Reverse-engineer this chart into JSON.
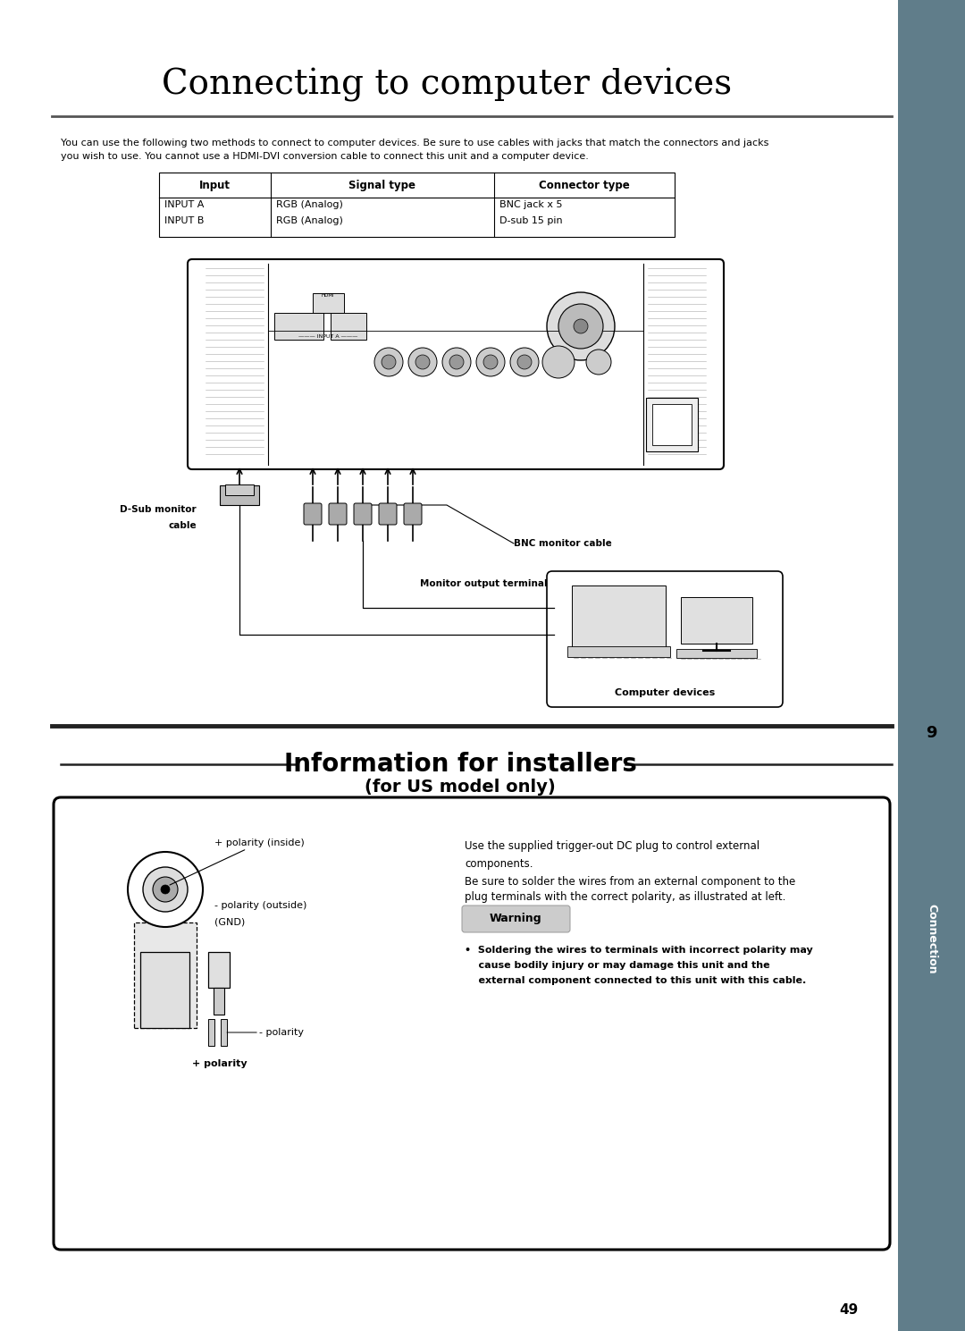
{
  "title": "Connecting to computer devices",
  "bg_color": "#ffffff",
  "sidebar_color": "#607d8a",
  "page_number": "49",
  "chapter_number": "9",
  "chapter_label": "Connection",
  "body_text_line1": "You can use the following two methods to connect to computer devices. Be sure to use cables with jacks that match the connectors and jacks",
  "body_text_line2": "you wish to use. You cannot use a HDMI-DVI conversion cable to connect this unit and a computer device.",
  "table_headers": [
    "Input",
    "Signal type",
    "Connector type"
  ],
  "table_rows": [
    [
      "INPUT A",
      "RGB (Analog)",
      "BNC jack x 5"
    ],
    [
      "INPUT B",
      "RGB (Analog)",
      "D-sub 15 pin"
    ]
  ],
  "section2_title": "Information for installers",
  "section2_subtitle": "(for US model only)",
  "warning_label": "Warning",
  "warning_text_line1": "•  Soldering the wires to terminals with incorrect polarity may",
  "warning_text_line2": "    cause bodily injury or may damage this unit and the",
  "warning_text_line3": "    external component connected to this unit with this cable.",
  "info_text_line1": "Use the supplied trigger-out DC plug to control external",
  "info_text_line2": "components.",
  "info_text_line3": "Be sure to solder the wires from an external component to the",
  "info_text_line4": "plug terminals with the correct polarity, as illustrated at left.",
  "plus_polarity_inside": "+ polarity (inside)",
  "minus_polarity_outside_1": "- polarity (outside)",
  "minus_polarity_outside_2": "(GND)",
  "minus_polarity": "- polarity",
  "plus_polarity": "+ polarity",
  "bnc_label": "BNC monitor cable",
  "dsub_label_1": "D-Sub monitor",
  "dsub_label_2": "cable",
  "monitor_label": "Monitor output terminal",
  "computer_label": "Computer devices"
}
